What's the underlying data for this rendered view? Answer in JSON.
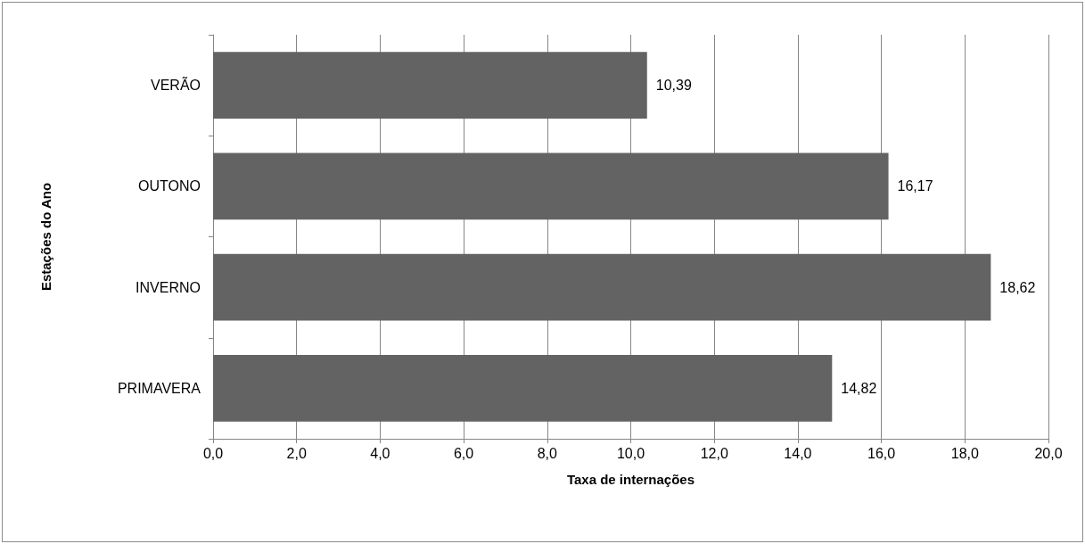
{
  "chart_data": {
    "type": "bar",
    "orientation": "horizontal",
    "xlabel": "Taxa de internações",
    "ylabel": "Estações do Ano",
    "categories": [
      "VERÃO",
      "OUTONO",
      "INVERNO",
      "PRIMAVERA"
    ],
    "values": [
      10.39,
      16.17,
      18.62,
      14.82
    ],
    "value_labels": [
      "10,39",
      "16,17",
      "18,62",
      "14,82"
    ],
    "color": "#636363",
    "xlim": [
      0,
      20
    ],
    "xticks": [
      {
        "value": 0,
        "label": "0,0"
      },
      {
        "value": 2,
        "label": "2,0"
      },
      {
        "value": 4,
        "label": "4,0"
      },
      {
        "value": 6,
        "label": "6,0"
      },
      {
        "value": 8,
        "label": "8,0"
      },
      {
        "value": 10,
        "label": "10,0"
      },
      {
        "value": 12,
        "label": "12,0"
      },
      {
        "value": 14,
        "label": "14,0"
      },
      {
        "value": 16,
        "label": "16,0"
      },
      {
        "value": 18,
        "label": "18,0"
      },
      {
        "value": 20,
        "label": "20,0"
      }
    ],
    "grid": "x"
  }
}
